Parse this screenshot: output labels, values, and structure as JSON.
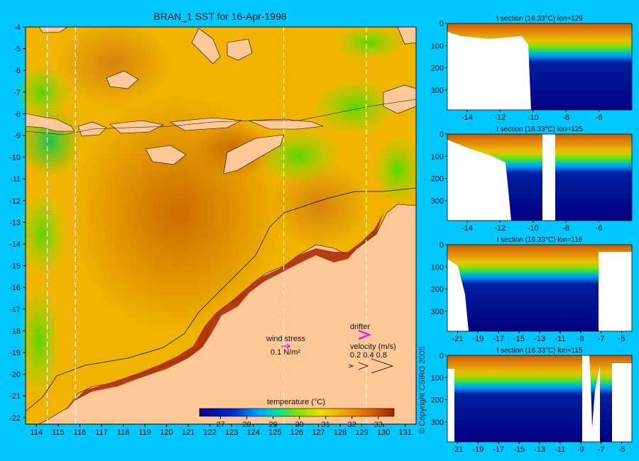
{
  "chart_data": [
    {
      "type": "heatmap",
      "title": "BRAN_1 SST for 16-Apr-1998",
      "x": [
        114,
        115,
        116,
        117,
        118,
        119,
        120,
        121,
        122,
        123,
        124,
        125,
        126,
        127,
        128,
        129,
        130,
        131
      ],
      "y": [
        -4,
        -5,
        -6,
        -7,
        -8,
        -9,
        -10,
        -11,
        -12,
        -13,
        -14,
        -15,
        -16,
        -17,
        -18,
        -19,
        -20,
        -21,
        -22
      ],
      "xlim": [
        113.5,
        131.5
      ],
      "ylim": [
        -22.3,
        -4
      ],
      "colorbar": {
        "label": "temperature (°C)",
        "ticks": [
          27,
          28,
          29,
          30,
          31,
          32,
          33
        ],
        "range": [
          26.2,
          33.6
        ]
      },
      "annotations": {
        "wind_label": "wind stress",
        "wind_ref": "0.1 N/m²",
        "drifter_label": "drifter",
        "velocity_label": "velocity (m/s)",
        "velocity_ticks": "0.2 0.4 0.8"
      },
      "section_longitudes": [
        114.5,
        115.8,
        125.4,
        129.2
      ]
    },
    {
      "type": "heatmap",
      "title": "t section (16.33°C) lon=129",
      "x": [
        -14,
        -12,
        -10,
        -8,
        -6
      ],
      "xlim": [
        -15.2,
        -4
      ],
      "y": [
        0,
        100,
        200,
        300
      ],
      "ylim": [
        390,
        0
      ]
    },
    {
      "type": "heatmap",
      "title": "t section (16.33°C) lon=125",
      "x": [
        -14,
        -12,
        -10,
        -8,
        -6
      ],
      "xlim": [
        -15.2,
        -4
      ],
      "y": [
        0,
        100,
        200,
        300
      ],
      "ylim": [
        390,
        0
      ]
    },
    {
      "type": "heatmap",
      "title": "t section (16.33°C) lon=116",
      "x": [
        -21,
        -19,
        -17,
        -15,
        -13,
        -11,
        -9,
        -7,
        -5
      ],
      "xlim": [
        -22,
        -4
      ],
      "y": [
        0,
        100,
        200,
        300
      ],
      "ylim": [
        390,
        0
      ]
    },
    {
      "type": "heatmap",
      "title": "t section (16.33°C) lon=115",
      "x": [
        -21,
        -19,
        -17,
        -15,
        -13,
        -11,
        -9,
        -7,
        -5
      ],
      "xlim": [
        -22,
        -4
      ],
      "y": [
        0,
        100,
        200,
        300
      ],
      "ylim": [
        390,
        0
      ]
    }
  ],
  "copyright": "© Copyright CSIRO 2005",
  "colors": {
    "background": "#00c8ff",
    "land": "#ffc896",
    "no_data": "#ffffff",
    "drifter": "#ff00ff"
  }
}
